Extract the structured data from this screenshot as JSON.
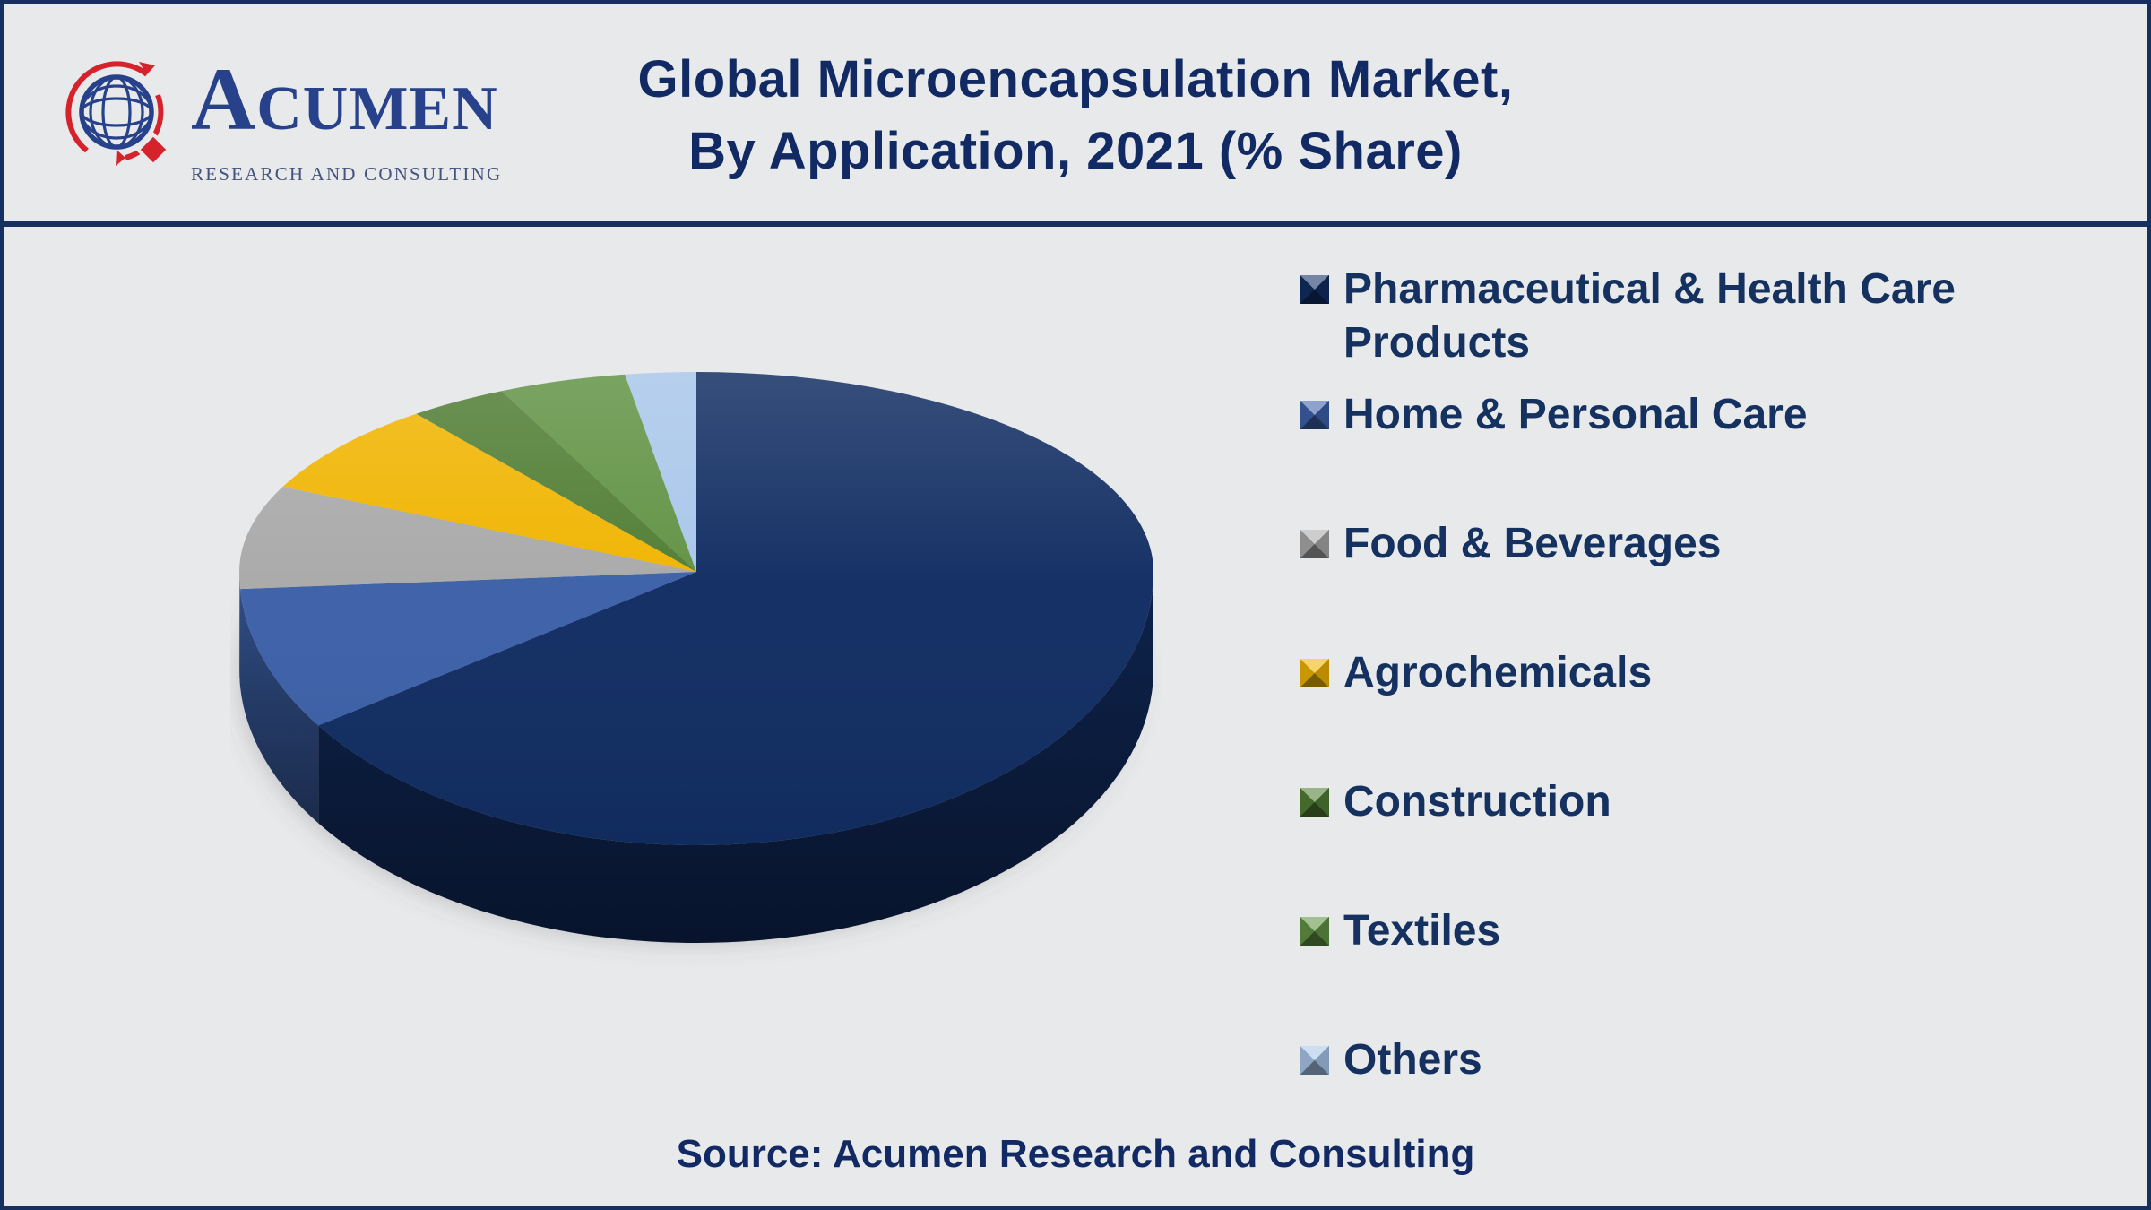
{
  "page": {
    "background": "#e8e9ea",
    "frame_border_color": "#16305f"
  },
  "header": {
    "logo": {
      "icon": "globe-with-arrows-and-diamond",
      "name_initial": "A",
      "name_rest": "CUMEN",
      "subtitle": "RESEARCH AND CONSULTING",
      "globe_color": "#27418b",
      "accent_red": "#d6232b"
    },
    "title_line1": "Global Microencapsulation Market,",
    "title_line2": "By Application, 2021 (% Share)",
    "title_color": "#122a64"
  },
  "chart_data": {
    "type": "pie",
    "style": "3d-perspective",
    "title": "Global Microencapsulation Market, By Application, 2021 (% Share)",
    "unit": "percent share of market",
    "year": "2021",
    "categories": [
      "Pharmaceutical & Health Care Products",
      "Home & Personal Care",
      "Food & Beverages",
      "Agrochemicals",
      "Construction",
      "Textiles",
      "Others"
    ],
    "values": [
      65.5,
      8.5,
      8,
      7.5,
      3.5,
      4.5,
      2.5
    ],
    "values_are_estimates_from_angles": true,
    "data_labels_shown": false,
    "colors": [
      "#112d62",
      "#3c60a8",
      "#a9a9aa",
      "#f0b400",
      "#507d33",
      "#619244",
      "#a9c6ea"
    ],
    "start_angle_deg": 0,
    "direction": "clockwise",
    "legend_position": "right"
  },
  "footer": {
    "source_label": "Source: Acumen Research and Consulting"
  }
}
